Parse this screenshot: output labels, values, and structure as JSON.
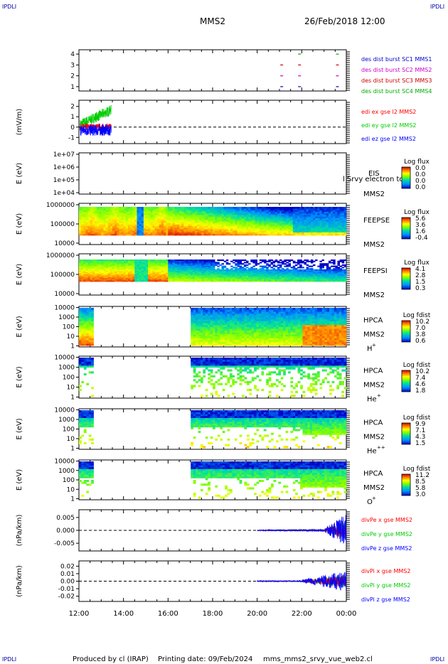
{
  "corner_labels": [
    "IPDLI",
    "IPDLI",
    "IPDLI",
    "IPDLI"
  ],
  "header": {
    "spacecraft": "MMS2",
    "datetime": "26/Feb/2018 12:00"
  },
  "footer": {
    "produced_by": "Produced by cl (IRAP)",
    "printing_date": "Printing date: 09/Feb/2024",
    "filename": "mms_mms2_srvy_vue_web2.cl"
  },
  "time_axis": {
    "ticks": [
      "12:00",
      "14:00",
      "16:00",
      "18:00",
      "20:00",
      "22:00",
      "00:00"
    ],
    "range_hours": [
      12,
      24
    ]
  },
  "chart_data": [
    {
      "type": "scatter",
      "id": "burst",
      "yticks": [
        "1",
        "2",
        "3",
        "4"
      ],
      "ylim": [
        0.6,
        4.4
      ],
      "legend": [
        {
          "label": "des dist burst SC1 MMS1",
          "color": "#0000cc"
        },
        {
          "label": "des dist burst SC2 MMS2",
          "color": "#cc00cc"
        },
        {
          "label": "des dist burst SC3 MMS3",
          "color": "#cc0000"
        },
        {
          "label": "des dist burst SC4 MMS4",
          "color": "#00aa00"
        }
      ],
      "points": [
        {
          "t": 21.1,
          "sc": 1
        },
        {
          "t": 21.9,
          "sc": 1
        },
        {
          "t": 23.6,
          "sc": 1
        },
        {
          "t": 21.1,
          "sc": 2
        },
        {
          "t": 21.9,
          "sc": 2
        },
        {
          "t": 23.6,
          "sc": 2
        },
        {
          "t": 21.1,
          "sc": 3
        },
        {
          "t": 21.9,
          "sc": 3
        },
        {
          "t": 23.6,
          "sc": 3
        },
        {
          "t": 21.9,
          "sc": 4
        },
        {
          "t": 23.6,
          "sc": 4
        }
      ]
    },
    {
      "type": "line",
      "id": "edi",
      "ylabel": "(mV/m)",
      "yticks": [
        "-1",
        "0",
        "1",
        "2"
      ],
      "ylim": [
        -1.6,
        2.6
      ],
      "legend": [
        {
          "label": "edi ex gse l2 MMS2",
          "color": "#ff0000"
        },
        {
          "label": "edi ey gse l2 MMS2",
          "color": "#00cc00"
        },
        {
          "label": "edi ez gse l2 MMS2",
          "color": "#0000ff"
        }
      ],
      "trange": [
        12.05,
        13.45
      ]
    },
    {
      "type": "heatmap",
      "id": "eis",
      "ylabel": "E (eV)",
      "yticks": [
        "1e+04",
        "1e+05",
        "1e+06",
        "1e+07"
      ],
      "instrument": "EIS",
      "spacecraft": "MMS2",
      "overlay_text": "l Srvy electron to",
      "cbar_title": "Log flux",
      "cbar_ticks": [
        "0.0",
        "0.0",
        "0.0",
        "0.0"
      ]
    },
    {
      "type": "heatmap",
      "id": "feepse",
      "ylabel": "E (eV)",
      "yticks": [
        "10000",
        "100000",
        "1000000"
      ],
      "instrument": "FEEPSE",
      "spacecraft": "MMS2",
      "cbar_title": "Log flux",
      "cbar_ticks": [
        "5.6",
        "3.6",
        "1.6",
        "-0.4"
      ]
    },
    {
      "type": "heatmap",
      "id": "feepsi",
      "ylabel": "E (eV)",
      "yticks": [
        "10000",
        "100000",
        "1000000"
      ],
      "instrument": "FEEPSI",
      "spacecraft": "MMS2",
      "cbar_title": "Log flux",
      "cbar_ticks": [
        "4.1",
        "2.8",
        "1.5",
        "0.3"
      ]
    },
    {
      "type": "heatmap",
      "id": "hpca_h",
      "ylabel": "E (eV)",
      "yticks": [
        "1",
        "10",
        "100",
        "1000",
        "10000"
      ],
      "instrument": "HPCA",
      "spacecraft": "MMS2",
      "species": "H",
      "species_sup": "+",
      "cbar_title": "Log fdist",
      "cbar_ticks": [
        "10.2",
        "7.0",
        "3.8",
        "0.6"
      ]
    },
    {
      "type": "heatmap",
      "id": "hpca_he",
      "ylabel": "E (eV)",
      "yticks": [
        "1",
        "10",
        "100",
        "1000",
        "10000"
      ],
      "instrument": "HPCA",
      "spacecraft": "MMS2",
      "species": "He",
      "species_sup": "+",
      "cbar_title": "Log fdist",
      "cbar_ticks": [
        "10.2",
        "7.4",
        "4.6",
        "1.8"
      ]
    },
    {
      "type": "heatmap",
      "id": "hpca_hepp",
      "ylabel": "E (eV)",
      "yticks": [
        "1",
        "10",
        "100",
        "1000",
        "10000"
      ],
      "instrument": "HPCA",
      "spacecraft": "MMS2",
      "species": "He",
      "species_sup": "++",
      "cbar_title": "Log fdist",
      "cbar_ticks": [
        "9.9",
        "7.1",
        "4.3",
        "1.5"
      ]
    },
    {
      "type": "heatmap",
      "id": "hpca_o",
      "ylabel": "E (eV)",
      "yticks": [
        "1",
        "10",
        "100",
        "1000",
        "10000"
      ],
      "instrument": "HPCA",
      "spacecraft": "MMS2",
      "species": "O",
      "species_sup": "+",
      "cbar_title": "Log fdist",
      "cbar_ticks": [
        "11.2",
        "8.5",
        "5.8",
        "3.0"
      ]
    },
    {
      "type": "line",
      "id": "divpe",
      "ylabel": "(nPa/km)",
      "yticks": [
        "-0.005",
        "0.000",
        "0.005"
      ],
      "ylim": [
        -0.008,
        0.008
      ],
      "legend": [
        {
          "label": "divPe x gse MMS2",
          "color": "#ff0000"
        },
        {
          "label": "divPe y gse MMS2",
          "color": "#00cc00"
        },
        {
          "label": "divPe z gse MMS2",
          "color": "#0000ff"
        }
      ],
      "trange": [
        20.0,
        24.0
      ]
    },
    {
      "type": "line",
      "id": "divpi",
      "ylabel": "(nPa/km)",
      "yticks": [
        "-0.02",
        "-0.01",
        "0.00",
        "0.01",
        "0.02"
      ],
      "ylim": [
        -0.027,
        0.027
      ],
      "legend": [
        {
          "label": "divPi x gse MMS2",
          "color": "#ff0000"
        },
        {
          "label": "divPi y gse MMS2",
          "color": "#00cc00"
        },
        {
          "label": "divPi z gse MMS2",
          "color": "#0000ff"
        }
      ],
      "trange": [
        20.0,
        24.0
      ]
    }
  ]
}
